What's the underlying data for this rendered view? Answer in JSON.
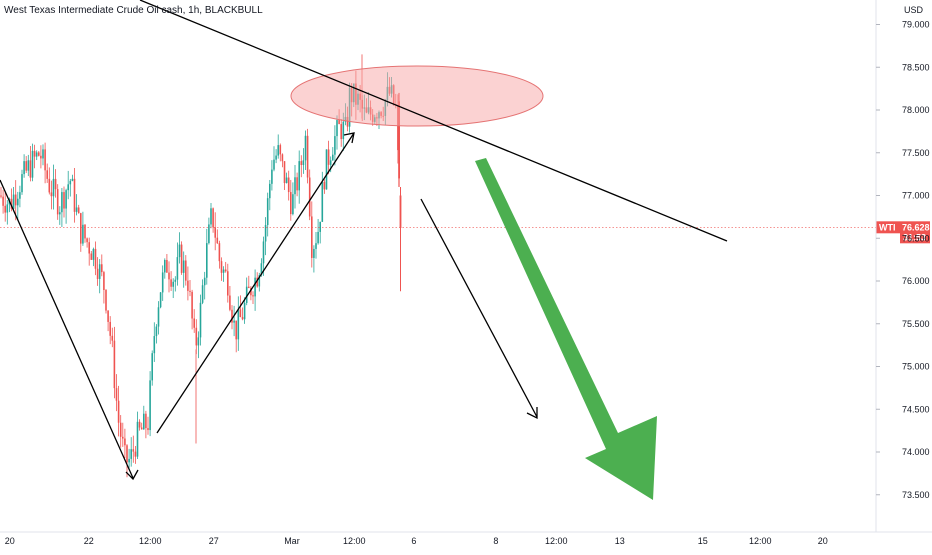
{
  "chart_data": {
    "type": "candlestick",
    "title": "West Texas Intermediate Crude Oil cash, 1h, BLACKBULL",
    "unit_label": "USD",
    "ylim": [
      73.4,
      79.2
    ],
    "y_ticks": [
      {
        "value": 79.0,
        "label": "79.000"
      },
      {
        "value": 78.5,
        "label": "78.500"
      },
      {
        "value": 78.0,
        "label": "78.000"
      },
      {
        "value": 77.5,
        "label": "77.500"
      },
      {
        "value": 77.0,
        "label": "77.000"
      },
      {
        "value": 76.5,
        "label": "76.500"
      },
      {
        "value": 76.0,
        "label": "76.000"
      },
      {
        "value": 75.5,
        "label": "75.500"
      },
      {
        "value": 75.0,
        "label": "75.000"
      },
      {
        "value": 74.5,
        "label": "74.500"
      },
      {
        "value": 74.0,
        "label": "74.000"
      },
      {
        "value": 73.5,
        "label": "73.500"
      }
    ],
    "x_ticks": [
      "20",
      "22",
      "12:00",
      "27",
      "Mar",
      "12:00",
      "6",
      "8",
      "12:00",
      "13",
      "15",
      "12:00",
      "20"
    ],
    "current_price": {
      "symbol": "WTI",
      "value": 76.628,
      "label": "76.628",
      "countdown": "31:53"
    },
    "colors": {
      "up": "#26a69a",
      "down": "#ef5350",
      "arrow": "#4caf50",
      "line": "#000000",
      "zone": "#f8a5a5"
    },
    "path_anchors": [
      {
        "label": "start",
        "value": 77.1
      },
      {
        "label": "low",
        "value": 73.9
      },
      {
        "label": "rally-low",
        "value": 74.2
      },
      {
        "label": "rally-high",
        "value": 77.75
      },
      {
        "label": "target",
        "value": 74.6
      }
    ]
  }
}
